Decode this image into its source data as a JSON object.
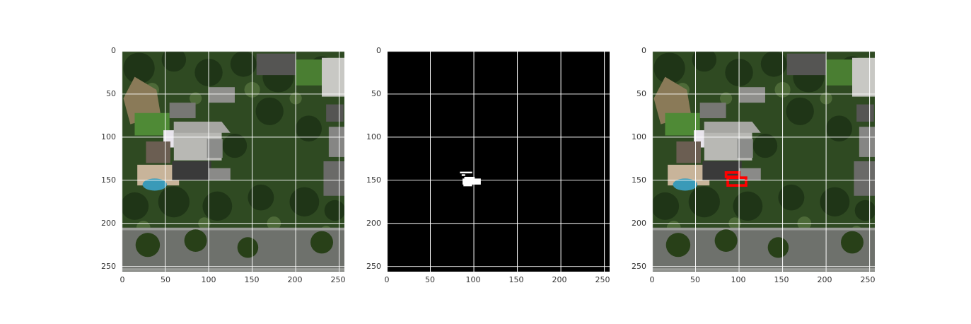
{
  "panels": [
    {
      "id": "aerial",
      "kind": "aerial-photo",
      "x_ticks": [
        "0",
        "50",
        "100",
        "150",
        "200",
        "250"
      ],
      "y_ticks": [
        "0",
        "50",
        "100",
        "150",
        "200",
        "250"
      ]
    },
    {
      "id": "mask",
      "kind": "binary-mask",
      "x_ticks": [
        "0",
        "50",
        "100",
        "150",
        "200",
        "250"
      ],
      "y_ticks": [
        "0",
        "50",
        "100",
        "150",
        "200",
        "250"
      ]
    },
    {
      "id": "overlay",
      "kind": "aerial-photo-with-red-outline",
      "x_ticks": [
        "0",
        "50",
        "100",
        "150",
        "200",
        "250"
      ],
      "y_ticks": [
        "0",
        "50",
        "100",
        "150",
        "200",
        "250"
      ]
    }
  ],
  "colors": {
    "grid": "#ffffff",
    "mask_background": "#000000",
    "mask_foreground": "#ffffff",
    "outline": "#ff0000",
    "vegetation": "#2f4a22",
    "roof": "#b8b8b4",
    "road": "#6e716c",
    "pool": "#3a9ab8"
  }
}
